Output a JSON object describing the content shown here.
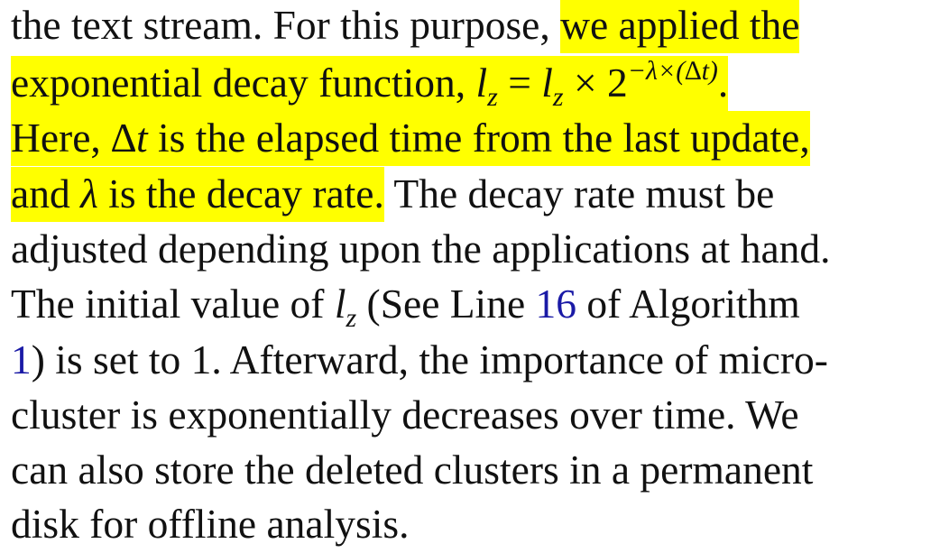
{
  "lines": [
    {
      "a": "the text stream. For this purpose, ",
      "hl": "we applied the"
    },
    {
      "hl1": "exponential decay function, ",
      "l": "l",
      "z": "z",
      "eq": " = ",
      "l2": "l",
      "z2": "z",
      "times": " × 2",
      "exp": "−λ×(∆t)",
      "dot": "."
    },
    {
      "hl_a": "Here, ",
      "dt": "∆t",
      "hl_b": " is the elapsed time from the last update,"
    },
    {
      "hl_a": "and ",
      "lam": "λ",
      "hl_b": " is the decay rate.",
      "b": " The decay rate must be"
    },
    {
      "text": "adjusted depending upon the applications at hand."
    },
    {
      "a": "The initial value of ",
      "l": "l",
      "z": "z",
      "b": " (See Line ",
      "ref": "16",
      "c": " of Algorithm"
    },
    {
      "ref": "1",
      "a": ") is set to 1. Afterward, the importance of micro-"
    },
    {
      "text": "cluster is exponentially decreases over time. We"
    },
    {
      "text": "can also store the deleted clusters in a permanent"
    },
    {
      "text": "disk for offline analysis."
    }
  ]
}
